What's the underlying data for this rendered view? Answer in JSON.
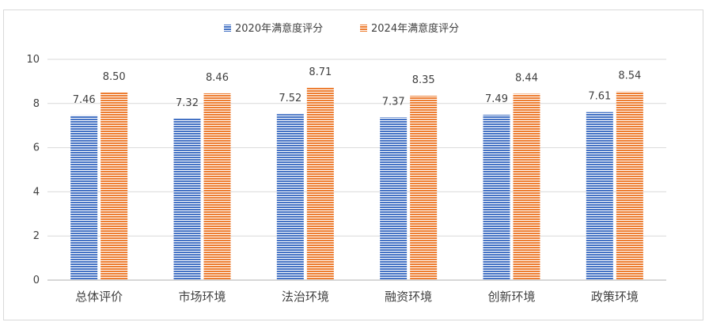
{
  "chart_data": {
    "type": "bar",
    "categories": [
      "总体评价",
      "市场环境",
      "法治环境",
      "融资环境",
      "创新环境",
      "政策环境"
    ],
    "series": [
      {
        "name": "2020年满意度评分",
        "values": [
          7.46,
          7.32,
          7.52,
          7.37,
          7.49,
          7.61
        ],
        "color": "#4472C4",
        "data_labels": [
          "7.46",
          "7.32",
          "7.52",
          "7.37",
          "7.49",
          "7.61"
        ]
      },
      {
        "name": "2024年满意度评分",
        "values": [
          8.5,
          8.46,
          8.71,
          8.35,
          8.44,
          8.54
        ],
        "color": "#ED7D31",
        "data_labels": [
          "8.50",
          "8.46",
          "8.71",
          "8.35",
          "8.44",
          "8.54"
        ]
      }
    ],
    "ylim": [
      0,
      10
    ],
    "yticks": [
      0,
      2,
      4,
      6,
      8,
      10
    ],
    "ytick_labels": [
      "0",
      "2",
      "4",
      "6",
      "8",
      "10"
    ],
    "title": "",
    "xlabel": "",
    "ylabel": "",
    "grid": true,
    "legend_position": "top",
    "bar_fill_pattern": "horizontal-stripes"
  }
}
